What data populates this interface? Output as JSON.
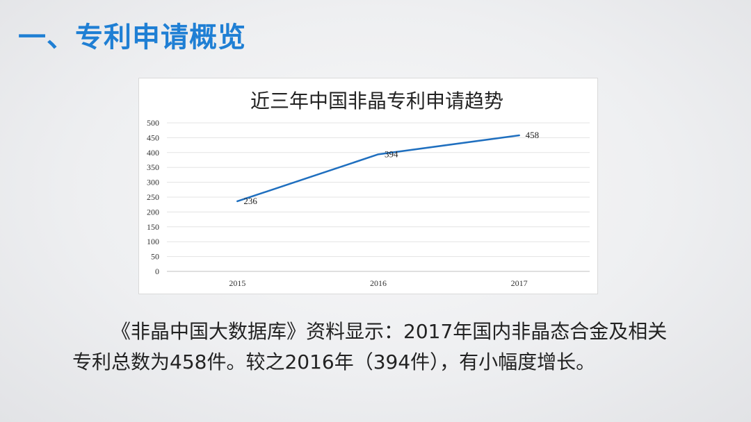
{
  "slide": {
    "title": "一、专利申请概览",
    "body_text": "《非晶中国大数据库》资料显示：2017年国内非晶态合金及相关专利总数为458件。较之2016年（394件），有小幅度增长。"
  },
  "chart_data": {
    "type": "line",
    "title": "近三年中国非晶专利申请趋势",
    "xlabel": "",
    "ylabel": "",
    "categories": [
      "2015",
      "2016",
      "2017"
    ],
    "series": [
      {
        "values": [
          236,
          394,
          458
        ],
        "color": "#1f6fbf"
      }
    ],
    "ylim": [
      0,
      500
    ],
    "yticks": [
      0,
      50,
      100,
      150,
      200,
      250,
      300,
      350,
      400,
      450,
      500
    ],
    "grid": true,
    "data_labels": true,
    "legend": "none"
  }
}
